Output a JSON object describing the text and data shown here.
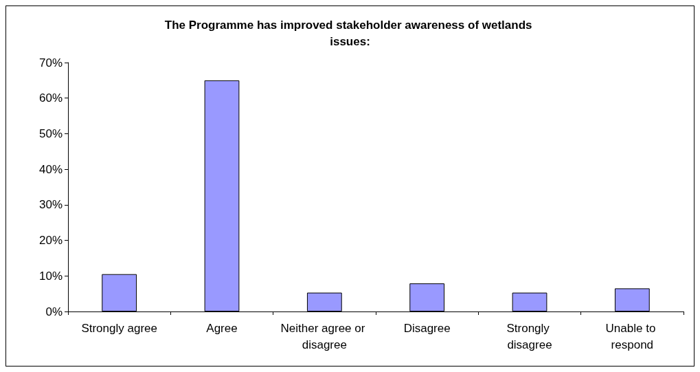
{
  "chart_data": {
    "type": "bar",
    "title": "The Programme has improved stakeholder awareness of wetlands issues:",
    "categories": [
      "Strongly agree",
      "Agree",
      "Neither agree or disagree",
      "Disagree",
      "Strongly disagree",
      "Unable to respond"
    ],
    "values": [
      10.5,
      65,
      5.3,
      7.9,
      5.3,
      6.5
    ],
    "color": "#9999ff",
    "ylim": [
      0,
      70
    ],
    "yticks": [
      {
        "value": 0,
        "label": "0%"
      },
      {
        "value": 10,
        "label": "10%"
      },
      {
        "value": 20,
        "label": "20%"
      },
      {
        "value": 30,
        "label": "30%"
      },
      {
        "value": 40,
        "label": "40%"
      },
      {
        "value": 50,
        "label": "50%"
      },
      {
        "value": 60,
        "label": "60%"
      },
      {
        "value": 70,
        "label": "70%"
      }
    ],
    "grid": false
  }
}
